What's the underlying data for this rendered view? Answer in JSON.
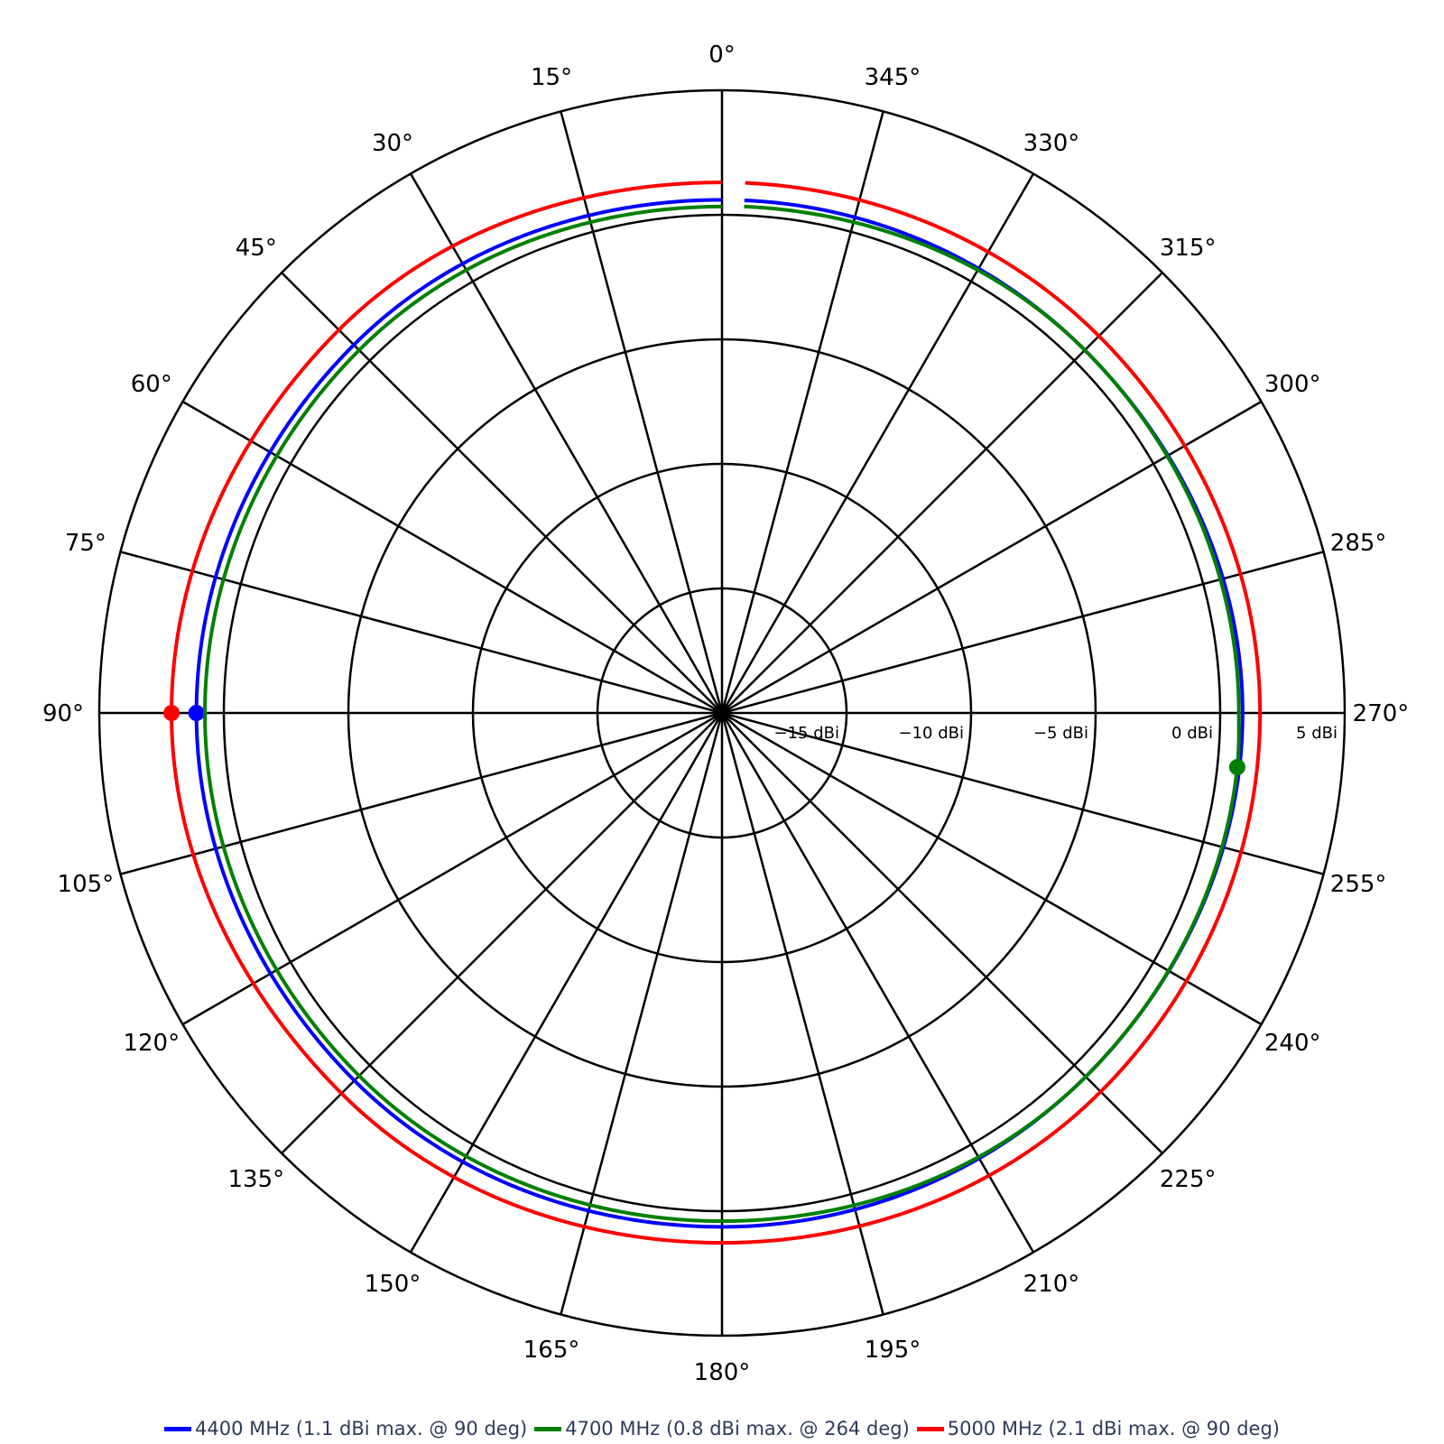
{
  "chart_data": {
    "type": "polar-line",
    "title": "",
    "center": {
      "x": 800,
      "y": 790
    },
    "radius_px": 690,
    "radial_axis": {
      "unit": "dBi",
      "min": -20,
      "max": 5,
      "ticks": [
        -15,
        -10,
        -5,
        0,
        5
      ],
      "tick_labels": [
        "−15 dBi",
        "−10 dBi",
        "−5 dBi",
        "0 dBi",
        "5 dBi"
      ]
    },
    "angular_axis": {
      "direction": "counterclockwise",
      "zero_at": "top",
      "step_deg": 15,
      "tick_labels": [
        "0°",
        "15°",
        "30°",
        "45°",
        "60°",
        "75°",
        "90°",
        "105°",
        "120°",
        "135°",
        "150°",
        "165°",
        "180°",
        "195°",
        "210°",
        "225°",
        "240°",
        "255°",
        "270°",
        "285°",
        "300°",
        "315°",
        "330°",
        "345°"
      ]
    },
    "grid": true,
    "legend_position": "bottom",
    "series": [
      {
        "name": "4400 MHz (1.1 dBi max. @ 90 deg)",
        "color": "#0000ff",
        "angles_deg": [
          0,
          45,
          90,
          135,
          180,
          225,
          270,
          315,
          357.5
        ],
        "gain_dbi": [
          0.6,
          0.9,
          1.1,
          0.87,
          0.63,
          0.65,
          0.9,
          0.6,
          0.6
        ],
        "max": {
          "angle": 90,
          "value": 1.1
        }
      },
      {
        "name": "4700 MHz (0.8 dBi max. @ 264 deg)",
        "color": "#008000",
        "angles_deg": [
          0,
          45,
          90,
          135,
          180,
          225,
          264,
          270,
          315,
          357.5
        ],
        "gain_dbi": [
          0.33,
          0.6,
          0.76,
          0.6,
          0.4,
          0.65,
          0.8,
          0.75,
          0.6,
          0.35
        ],
        "max": {
          "angle": 264,
          "value": 0.8
        }
      },
      {
        "name": "5000 MHz (2.1 dBi max. @ 90 deg)",
        "color": "#ff0000",
        "angles_deg": [
          0,
          45,
          90,
          135,
          180,
          225,
          270,
          315,
          357.5
        ],
        "gain_dbi": [
          1.3,
          1.75,
          2.1,
          1.6,
          1.27,
          1.5,
          1.6,
          1.4,
          1.3
        ],
        "max": {
          "angle": 90,
          "value": 2.1
        }
      }
    ]
  },
  "legend": [
    {
      "label": "4400 MHz (1.1 dBi max. @ 90 deg)",
      "color": "#0000ff"
    },
    {
      "label": "4700 MHz (0.8 dBi max. @ 264 deg)",
      "color": "#008000"
    },
    {
      "label": "5000 MHz (2.1 dBi max. @ 90 deg)",
      "color": "#ff0000"
    }
  ]
}
